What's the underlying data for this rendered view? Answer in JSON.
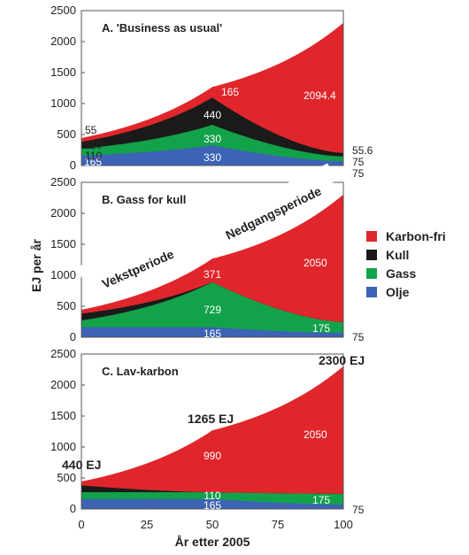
{
  "chart_data": {
    "type": "area",
    "stacked": true,
    "ylabel": "EJ per år",
    "xlabel": "År etter 2005",
    "x": [
      0,
      50,
      100
    ],
    "x_ticks": [
      0,
      25,
      50,
      75,
      100
    ],
    "ylim": [
      0,
      2500
    ],
    "y_ticks": [
      0,
      500,
      1000,
      1500,
      2000,
      2500
    ],
    "grid": false,
    "legend_position": "right",
    "legend": [
      {
        "name": "Karbon-fri",
        "color": "#e0262b"
      },
      {
        "name": "Kull",
        "color": "#1a1a1a"
      },
      {
        "name": "Gass",
        "color": "#12a24a"
      },
      {
        "name": "Olje",
        "color": "#3c63b5"
      }
    ],
    "panels": [
      {
        "title": "A. 'Business as usual'",
        "series": [
          {
            "name": "Olje",
            "values": [
              165,
              330,
              75
            ]
          },
          {
            "name": "Gass",
            "values": [
              110,
              330,
              75
            ]
          },
          {
            "name": "Kull",
            "values": [
              110,
              440,
              55.6
            ]
          },
          {
            "name": "Karbon-fri",
            "values": [
              55,
              165,
              2094.4
            ]
          }
        ],
        "labels": {
          "left": [
            "165",
            "110",
            "110",
            "55"
          ],
          "mid": [
            "330",
            "330",
            "440",
            "165"
          ],
          "right_in": "2094.4",
          "right_out": [
            "75",
            "75",
            "55.6"
          ]
        }
      },
      {
        "title": "B. Gass for kull",
        "series": [
          {
            "name": "Olje",
            "values": [
              165,
              165,
              75
            ]
          },
          {
            "name": "Gass",
            "values": [
              110,
              729,
              175
            ]
          },
          {
            "name": "Kull",
            "values": [
              110,
              0,
              0
            ]
          },
          {
            "name": "Karbon-fri",
            "values": [
              55,
              371,
              2050
            ]
          }
        ],
        "labels": {
          "mid": [
            "165",
            "729",
            "371"
          ],
          "right_in": [
            "175",
            "2050"
          ],
          "right_out": "75"
        },
        "annotations": [
          "Vekstperiode",
          "Nedgangsperiode"
        ]
      },
      {
        "title": "C. Lav-karbon",
        "series": [
          {
            "name": "Olje",
            "values": [
              165,
              165,
              75
            ]
          },
          {
            "name": "Gass",
            "values": [
              110,
              110,
              175
            ]
          },
          {
            "name": "Kull",
            "values": [
              110,
              0,
              0
            ]
          },
          {
            "name": "Karbon-fri",
            "values": [
              55,
              990,
              2050
            ]
          }
        ],
        "labels": {
          "mid": [
            "165",
            "110",
            "990"
          ],
          "right_in": [
            "175",
            "2050"
          ],
          "right_out": "75"
        },
        "totals": [
          "440 EJ",
          "1265 EJ",
          "2300 EJ"
        ]
      }
    ]
  }
}
